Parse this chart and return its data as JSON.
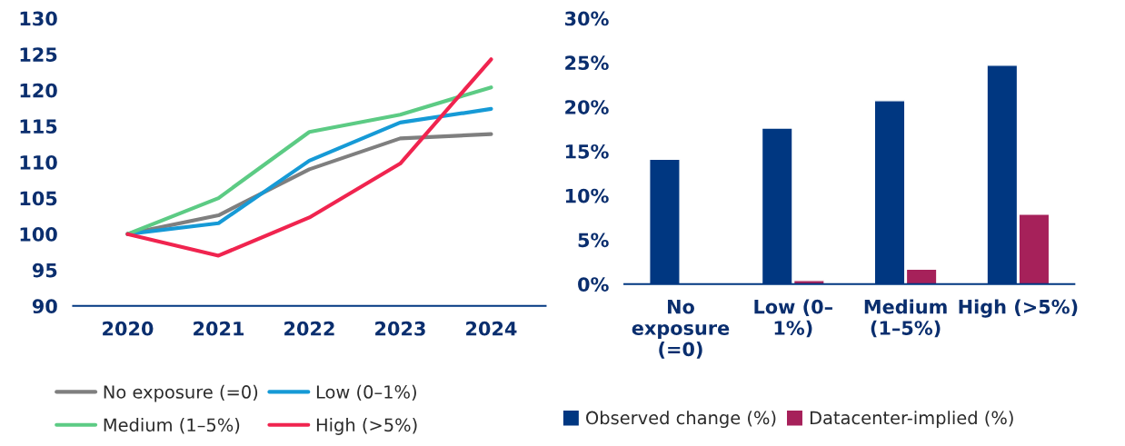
{
  "chart_data": [
    {
      "type": "line",
      "categories": [
        "2020",
        "2021",
        "2022",
        "2023",
        "2024"
      ],
      "ylim": [
        90,
        130
      ],
      "yticks": [
        90,
        95,
        100,
        105,
        110,
        115,
        120,
        125,
        130
      ],
      "grid": false,
      "legend": "bottom",
      "marker": "none",
      "line_style": "solid",
      "series": [
        {
          "name": "No exposure (=0)",
          "color": "#7f7f7f",
          "values": [
            100,
            102.6,
            109.0,
            113.3,
            113.9
          ]
        },
        {
          "name": "Low (0–1%)",
          "color": "#169ad6",
          "values": [
            100,
            101.5,
            110.2,
            115.5,
            117.4
          ]
        },
        {
          "name": "Medium (1–5%)",
          "color": "#5ccb84",
          "values": [
            100,
            105.0,
            114.2,
            116.6,
            120.4
          ]
        },
        {
          "name": "High (>5%)",
          "color": "#f0244f",
          "values": [
            100,
            97.0,
            102.3,
            109.8,
            124.3
          ]
        }
      ]
    },
    {
      "type": "bar",
      "categories": [
        "No\nexposure\n(=0)",
        "Low (0–\n1%)",
        "Medium\n(1–5%)",
        "High (>5%)"
      ],
      "ylim": [
        0,
        30
      ],
      "yticks": [
        {
          "value": 0,
          "label": "0%"
        },
        {
          "value": 5,
          "label": "5%"
        },
        {
          "value": 10,
          "label": "10%"
        },
        {
          "value": 15,
          "label": "15%"
        },
        {
          "value": 20,
          "label": "20%"
        },
        {
          "value": 25,
          "label": "25%"
        },
        {
          "value": 30,
          "label": "30%"
        }
      ],
      "grid": false,
      "legend": "bottom",
      "series": [
        {
          "name": "Observed change (%)",
          "color": "#003781",
          "values": [
            14.1,
            17.6,
            20.7,
            24.7
          ]
        },
        {
          "name": "Datacenter-implied (%)",
          "color": "#a6215a",
          "values": [
            null,
            0.4,
            1.7,
            7.9
          ]
        }
      ]
    }
  ]
}
